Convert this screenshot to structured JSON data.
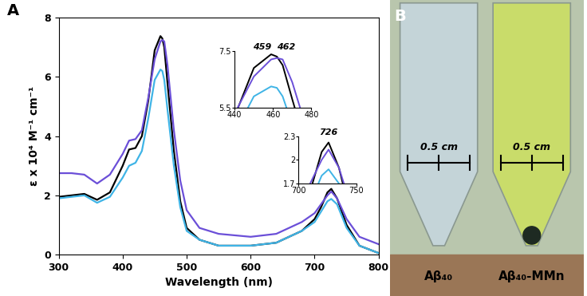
{
  "chart_data": {
    "type": "line",
    "panel_label": "A",
    "x_label": "Wavelength (nm)",
    "y_label": "ε x 10⁴ M⁻¹ cm⁻¹",
    "x": [
      300,
      320,
      340,
      360,
      380,
      400,
      410,
      420,
      430,
      440,
      450,
      459,
      462,
      465,
      470,
      480,
      490,
      500,
      520,
      550,
      600,
      640,
      660,
      680,
      700,
      710,
      720,
      726,
      735,
      750,
      770,
      800
    ],
    "series": [
      {
        "color": "#000000",
        "values": [
          1.95,
          2.0,
          2.05,
          1.85,
          2.1,
          3.0,
          3.55,
          3.6,
          4.0,
          5.2,
          6.9,
          7.38,
          7.3,
          7.0,
          5.8,
          3.5,
          1.8,
          0.9,
          0.5,
          0.3,
          0.3,
          0.4,
          0.6,
          0.8,
          1.2,
          1.6,
          2.1,
          2.22,
          1.9,
          1.0,
          0.3,
          0.05
        ]
      },
      {
        "color": "#6b4fd8",
        "values": [
          2.75,
          2.75,
          2.7,
          2.4,
          2.7,
          3.4,
          3.85,
          3.9,
          4.2,
          5.3,
          6.6,
          7.2,
          7.25,
          7.2,
          6.4,
          4.2,
          2.5,
          1.5,
          0.9,
          0.7,
          0.6,
          0.7,
          0.9,
          1.1,
          1.4,
          1.7,
          2.0,
          2.13,
          1.9,
          1.2,
          0.6,
          0.35
        ]
      },
      {
        "color": "#3fb4e6",
        "values": [
          1.9,
          1.95,
          2.0,
          1.75,
          1.95,
          2.6,
          3.0,
          3.1,
          3.5,
          4.6,
          5.9,
          6.25,
          6.2,
          5.9,
          4.9,
          3.0,
          1.6,
          0.8,
          0.5,
          0.3,
          0.3,
          0.4,
          0.6,
          0.8,
          1.1,
          1.45,
          1.8,
          1.88,
          1.7,
          0.9,
          0.3,
          0.05
        ]
      }
    ],
    "xlim": [
      300,
      800
    ],
    "xticks": [
      300,
      400,
      500,
      600,
      700,
      800
    ],
    "ylim": [
      0,
      8
    ],
    "yticks": [
      0,
      2,
      4,
      6,
      8
    ],
    "insets": [
      {
        "xlim": [
          440,
          480
        ],
        "xticks": [
          440,
          460,
          480
        ],
        "ylim": [
          5.5,
          7.5
        ],
        "yticks": [
          5.5,
          7.5
        ],
        "annotations": [
          {
            "text": "459",
            "x": 459
          },
          {
            "text": "462",
            "x": 462
          }
        ]
      },
      {
        "xlim": [
          700,
          750
        ],
        "xticks": [
          700,
          750
        ],
        "ylim": [
          1.7,
          2.3
        ],
        "yticks": [
          1.7,
          2,
          2.3
        ],
        "annotations": [
          {
            "text": "726",
            "x": 726
          }
        ]
      }
    ]
  },
  "photo": {
    "panel_label": "B",
    "tubes": [
      {
        "label": "Aβ₄₀",
        "scale_label": "0.5 cm"
      },
      {
        "label": "Aβ₄₀-MMn",
        "scale_label": "0.5 cm"
      }
    ]
  }
}
